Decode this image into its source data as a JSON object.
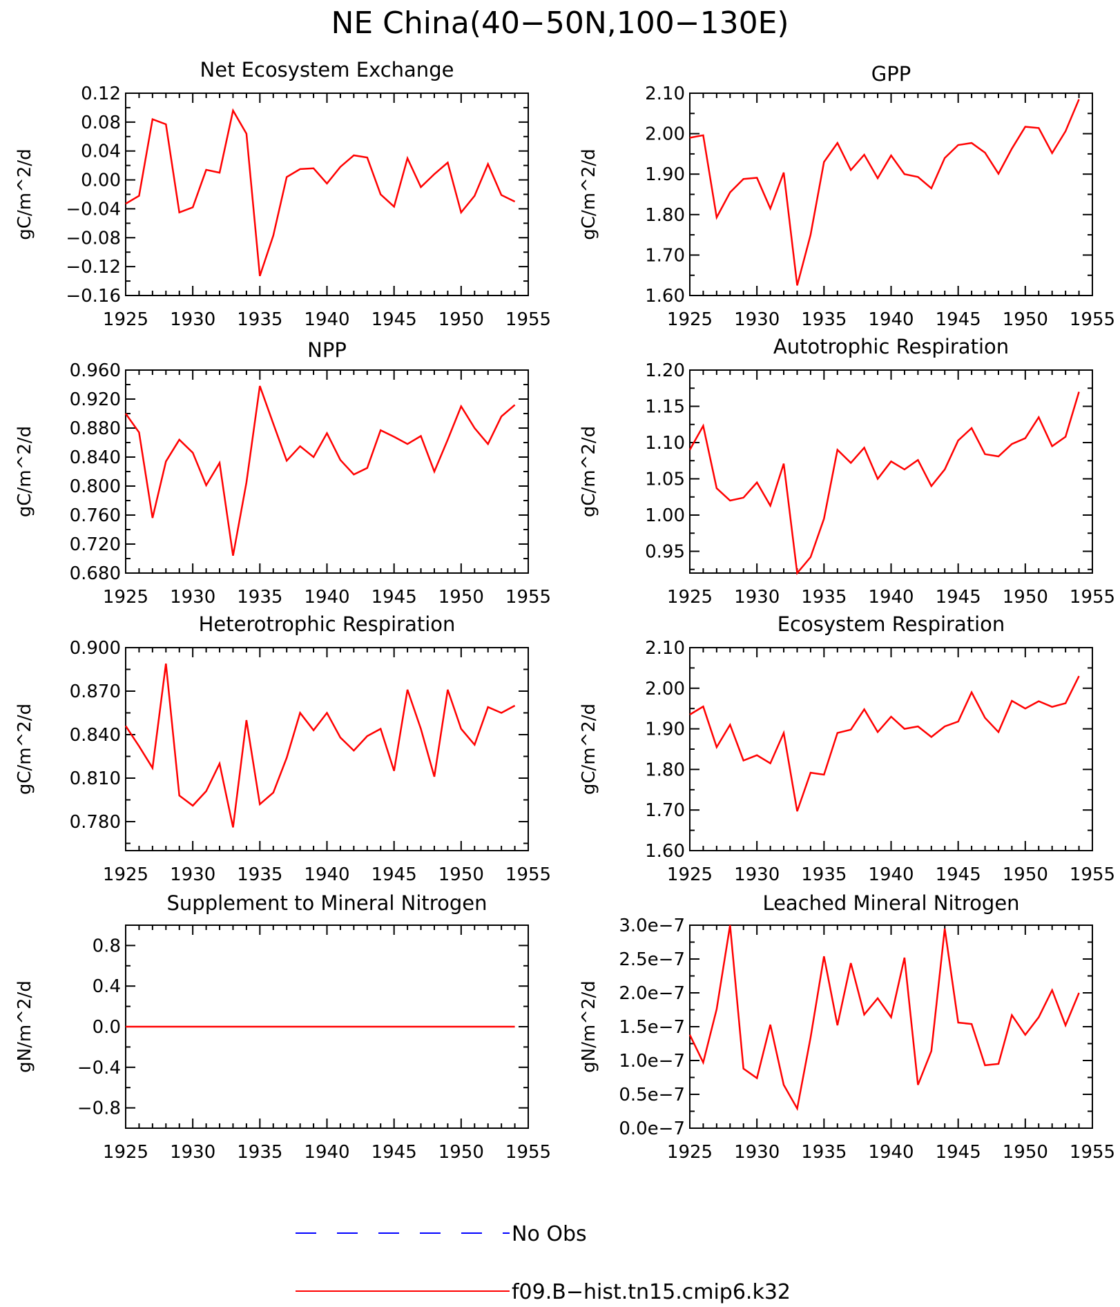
{
  "figure_title": "NE China(40−50N,100−130E)",
  "colors": {
    "model_line": "#ff0000",
    "obs_line": "#0000ff",
    "axes": "#000000"
  },
  "legend": {
    "entries": [
      {
        "label": "No Obs",
        "style": "dashed",
        "color": "#0000ff"
      },
      {
        "label": "f09.B−hist.tn15.cmip6.k32",
        "style": "solid",
        "color": "#ff0000"
      }
    ]
  },
  "chart_data": [
    {
      "type": "line",
      "title": "Net Ecosystem Exchange",
      "ylabel": "gC/m^2/d",
      "xlim": [
        1925,
        1955
      ],
      "ylim": [
        -0.16,
        0.12
      ],
      "xticks": [
        "1925",
        "1930",
        "1935",
        "1940",
        "1945",
        "1950",
        "1955"
      ],
      "yticks": [
        "0.12",
        "0.08",
        "0.04",
        "0.00",
        "−0.04",
        "−0.08",
        "−0.12",
        "−0.16"
      ],
      "series": [
        {
          "name": "f09.B−hist.tn15.cmip6.k32",
          "x_start": 1925,
          "values": [
            -0.033,
            -0.022,
            0.084,
            0.077,
            -0.045,
            -0.038,
            0.014,
            0.01,
            0.096,
            0.064,
            -0.133,
            -0.077,
            0.004,
            0.015,
            0.016,
            -0.005,
            0.018,
            0.034,
            0.031,
            -0.02,
            -0.037,
            0.03,
            -0.01,
            0.008,
            0.024,
            -0.045,
            -0.022,
            0.022,
            -0.021,
            -0.03
          ]
        }
      ]
    },
    {
      "type": "line",
      "title": "GPP",
      "ylabel": "gC/m^2/d",
      "xlim": [
        1925,
        1955
      ],
      "ylim": [
        1.6,
        2.1
      ],
      "xticks": [
        "1925",
        "1930",
        "1935",
        "1940",
        "1945",
        "1950",
        "1955"
      ],
      "yticks": [
        "2.10",
        "2.00",
        "1.90",
        "1.80",
        "1.70",
        "1.60"
      ],
      "series": [
        {
          "name": "f09.B−hist.tn15.cmip6.k32",
          "x_start": 1925,
          "values": [
            1.99,
            1.996,
            1.793,
            1.855,
            1.888,
            1.891,
            1.815,
            1.904,
            1.625,
            1.75,
            1.93,
            1.977,
            1.91,
            1.948,
            1.89,
            1.946,
            1.9,
            1.893,
            1.865,
            1.94,
            1.972,
            1.977,
            1.953,
            1.901,
            1.963,
            2.017,
            2.014,
            1.952,
            2.006,
            2.085
          ]
        }
      ]
    },
    {
      "type": "line",
      "title": "NPP",
      "ylabel": "gC/m^2/d",
      "xlim": [
        1925,
        1955
      ],
      "ylim": [
        0.68,
        0.96
      ],
      "xticks": [
        "1925",
        "1930",
        "1935",
        "1940",
        "1945",
        "1950",
        "1955"
      ],
      "yticks": [
        "0.960",
        "0.920",
        "0.880",
        "0.840",
        "0.800",
        "0.760",
        "0.720",
        "0.680"
      ],
      "series": [
        {
          "name": "f09.B−hist.tn15.cmip6.k32",
          "x_start": 1925,
          "values": [
            0.9,
            0.874,
            0.756,
            0.834,
            0.864,
            0.846,
            0.801,
            0.832,
            0.704,
            0.805,
            0.938,
            0.886,
            0.835,
            0.855,
            0.84,
            0.873,
            0.836,
            0.816,
            0.825,
            0.877,
            0.868,
            0.858,
            0.869,
            0.82,
            0.864,
            0.91,
            0.88,
            0.858,
            0.896,
            0.912
          ]
        }
      ]
    },
    {
      "type": "line",
      "title": "Autotrophic Respiration",
      "ylabel": "gC/m^2/d",
      "xlim": [
        1925,
        1955
      ],
      "ylim": [
        0.92,
        1.2
      ],
      "xticks": [
        "1925",
        "1930",
        "1935",
        "1940",
        "1945",
        "1950",
        "1955"
      ],
      "yticks": [
        "1.20",
        "1.15",
        "1.10",
        "1.05",
        "1.00",
        "0.95"
      ],
      "series": [
        {
          "name": "f09.B−hist.tn15.cmip6.k32",
          "x_start": 1925,
          "values": [
            1.09,
            1.123,
            1.037,
            1.02,
            1.024,
            1.045,
            1.013,
            1.071,
            0.92,
            0.942,
            0.995,
            1.09,
            1.072,
            1.093,
            1.05,
            1.074,
            1.063,
            1.076,
            1.04,
            1.063,
            1.103,
            1.12,
            1.084,
            1.081,
            1.098,
            1.106,
            1.135,
            1.095,
            1.108,
            1.17
          ]
        }
      ]
    },
    {
      "type": "line",
      "title": "Heterotrophic Respiration",
      "ylabel": "gC/m^2/d",
      "xlim": [
        1925,
        1955
      ],
      "ylim": [
        0.76,
        0.9
      ],
      "xticks": [
        "1925",
        "1930",
        "1935",
        "1940",
        "1945",
        "1950",
        "1955"
      ],
      "yticks": [
        "0.900",
        "0.870",
        "0.840",
        "0.810",
        "0.780"
      ],
      "series": [
        {
          "name": "f09.B−hist.tn15.cmip6.k32",
          "x_start": 1925,
          "values": [
            0.846,
            0.832,
            0.817,
            0.889,
            0.798,
            0.791,
            0.801,
            0.82,
            0.776,
            0.85,
            0.792,
            0.8,
            0.824,
            0.855,
            0.843,
            0.855,
            0.838,
            0.829,
            0.839,
            0.844,
            0.815,
            0.871,
            0.844,
            0.811,
            0.871,
            0.844,
            0.833,
            0.859,
            0.855,
            0.86
          ]
        }
      ]
    },
    {
      "type": "line",
      "title": "Ecosystem Respiration",
      "ylabel": "gC/m^2/d",
      "xlim": [
        1925,
        1955
      ],
      "ylim": [
        1.6,
        2.1
      ],
      "xticks": [
        "1925",
        "1930",
        "1935",
        "1940",
        "1945",
        "1950",
        "1955"
      ],
      "yticks": [
        "2.10",
        "2.00",
        "1.90",
        "1.80",
        "1.70",
        "1.60"
      ],
      "series": [
        {
          "name": "f09.B−hist.tn15.cmip6.k32",
          "x_start": 1925,
          "values": [
            1.935,
            1.955,
            1.855,
            1.91,
            1.822,
            1.835,
            1.815,
            1.89,
            1.697,
            1.792,
            1.787,
            1.89,
            1.898,
            1.948,
            1.892,
            1.93,
            1.9,
            1.906,
            1.88,
            1.906,
            1.918,
            1.99,
            1.927,
            1.892,
            1.969,
            1.95,
            1.968,
            1.954,
            1.963,
            2.03
          ]
        }
      ]
    },
    {
      "type": "line",
      "title": "Supplement to Mineral Nitrogen",
      "ylabel": "gN/m^2/d",
      "xlim": [
        1925,
        1955
      ],
      "ylim": [
        -1.0,
        1.0
      ],
      "xticks": [
        "1925",
        "1930",
        "1935",
        "1940",
        "1945",
        "1950",
        "1955"
      ],
      "yticks": [
        "0.8",
        "0.4",
        "0.0",
        "−0.4",
        "−0.8"
      ],
      "series": [
        {
          "name": "f09.B−hist.tn15.cmip6.k32",
          "x_start": 1925,
          "values": [
            0,
            0,
            0,
            0,
            0,
            0,
            0,
            0,
            0,
            0,
            0,
            0,
            0,
            0,
            0,
            0,
            0,
            0,
            0,
            0,
            0,
            0,
            0,
            0,
            0,
            0,
            0,
            0,
            0,
            0
          ]
        }
      ]
    },
    {
      "type": "line",
      "title": "Leached Mineral Nitrogen",
      "ylabel": "gN/m^2/d",
      "xlim": [
        1925,
        1955
      ],
      "ylim": [
        0.0,
        3e-07
      ],
      "xticks": [
        "1925",
        "1930",
        "1935",
        "1940",
        "1945",
        "1950",
        "1955"
      ],
      "yticks": [
        "3.0e−7",
        "2.5e−7",
        "2.0e−7",
        "1.5e−7",
        "1.0e−7",
        "0.5e−7",
        "0.0e−7"
      ],
      "series": [
        {
          "name": "f09.B−hist.tn15.cmip6.k32",
          "x_start": 1925,
          "values": [
            1.38e-07,
            9.7e-08,
            1.76e-07,
            3e-07,
            8.8e-08,
            7.4e-08,
            1.53e-07,
            6.4e-08,
            2.9e-08,
            1.34e-07,
            2.54e-07,
            1.52e-07,
            2.44e-07,
            1.68e-07,
            1.92e-07,
            1.64e-07,
            2.52e-07,
            6.4e-08,
            1.14e-07,
            2.95e-07,
            1.56e-07,
            1.54e-07,
            9.3e-08,
            9.5e-08,
            1.67e-07,
            1.38e-07,
            1.64e-07,
            2.04e-07,
            1.52e-07,
            2e-07
          ]
        }
      ]
    }
  ]
}
